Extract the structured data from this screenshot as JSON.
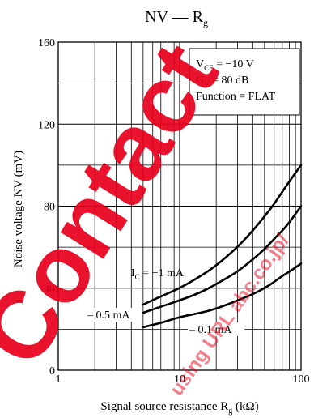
{
  "chart_data": {
    "type": "line",
    "title": "NV — Rg",
    "title_main": "NV — R",
    "title_sub": "g",
    "xlabel": "Signal source resistance  R",
    "xlabel_sub": "g",
    "xlabel_unit": "(kΩ)",
    "ylabel": "Noise voltage  NV  (mV)",
    "x_scale": "log",
    "xlim": [
      1,
      100
    ],
    "ylim": [
      0,
      160
    ],
    "grid": true,
    "x_ticks": [
      {
        "value": 1,
        "label": "1"
      },
      {
        "value": 10,
        "label": "10"
      },
      {
        "value": 100,
        "label": "100"
      }
    ],
    "y_ticks": [
      {
        "value": 0,
        "label": "0"
      },
      {
        "value": 40,
        "label": "40"
      },
      {
        "value": 80,
        "label": "80"
      },
      {
        "value": 120,
        "label": "120"
      },
      {
        "value": 160,
        "label": "160"
      }
    ],
    "conditions": [
      {
        "main": "V",
        "sub": "CE",
        "rest": " = −10 V"
      },
      {
        "main": "G",
        "sub": "V",
        "rest": " = 80 dB"
      },
      {
        "main": "Function = FLAT",
        "sub": "",
        "rest": ""
      }
    ],
    "series": [
      {
        "label_main": "I",
        "label_sub": "C",
        "label_rest": " = −1 mA",
        "x": [
          5,
          7,
          10,
          15,
          20,
          30,
          40,
          50,
          60,
          70,
          80,
          100
        ],
        "y": [
          32,
          36,
          40,
          46,
          51,
          60,
          68,
          75,
          81,
          87,
          92,
          100
        ]
      },
      {
        "label_main": "– 0.5 mA",
        "label_sub": "",
        "label_rest": "",
        "x": [
          5,
          7,
          10,
          15,
          20,
          30,
          40,
          50,
          60,
          70,
          80,
          100
        ],
        "y": [
          28,
          31,
          34,
          38,
          42,
          48,
          54,
          59,
          64,
          68,
          72,
          80
        ]
      },
      {
        "label_main": "– 0.1 mA",
        "label_sub": "",
        "label_rest": "",
        "x": [
          5,
          7,
          10,
          15,
          20,
          30,
          40,
          50,
          60,
          70,
          80,
          100
        ],
        "y": [
          21,
          23,
          26,
          28,
          30,
          34,
          37,
          40,
          43,
          46,
          48,
          52
        ]
      }
    ]
  },
  "watermark": {
    "main": "Contact",
    "secondary": "using URL abc.co.jp/",
    "color": "#e8001c"
  }
}
